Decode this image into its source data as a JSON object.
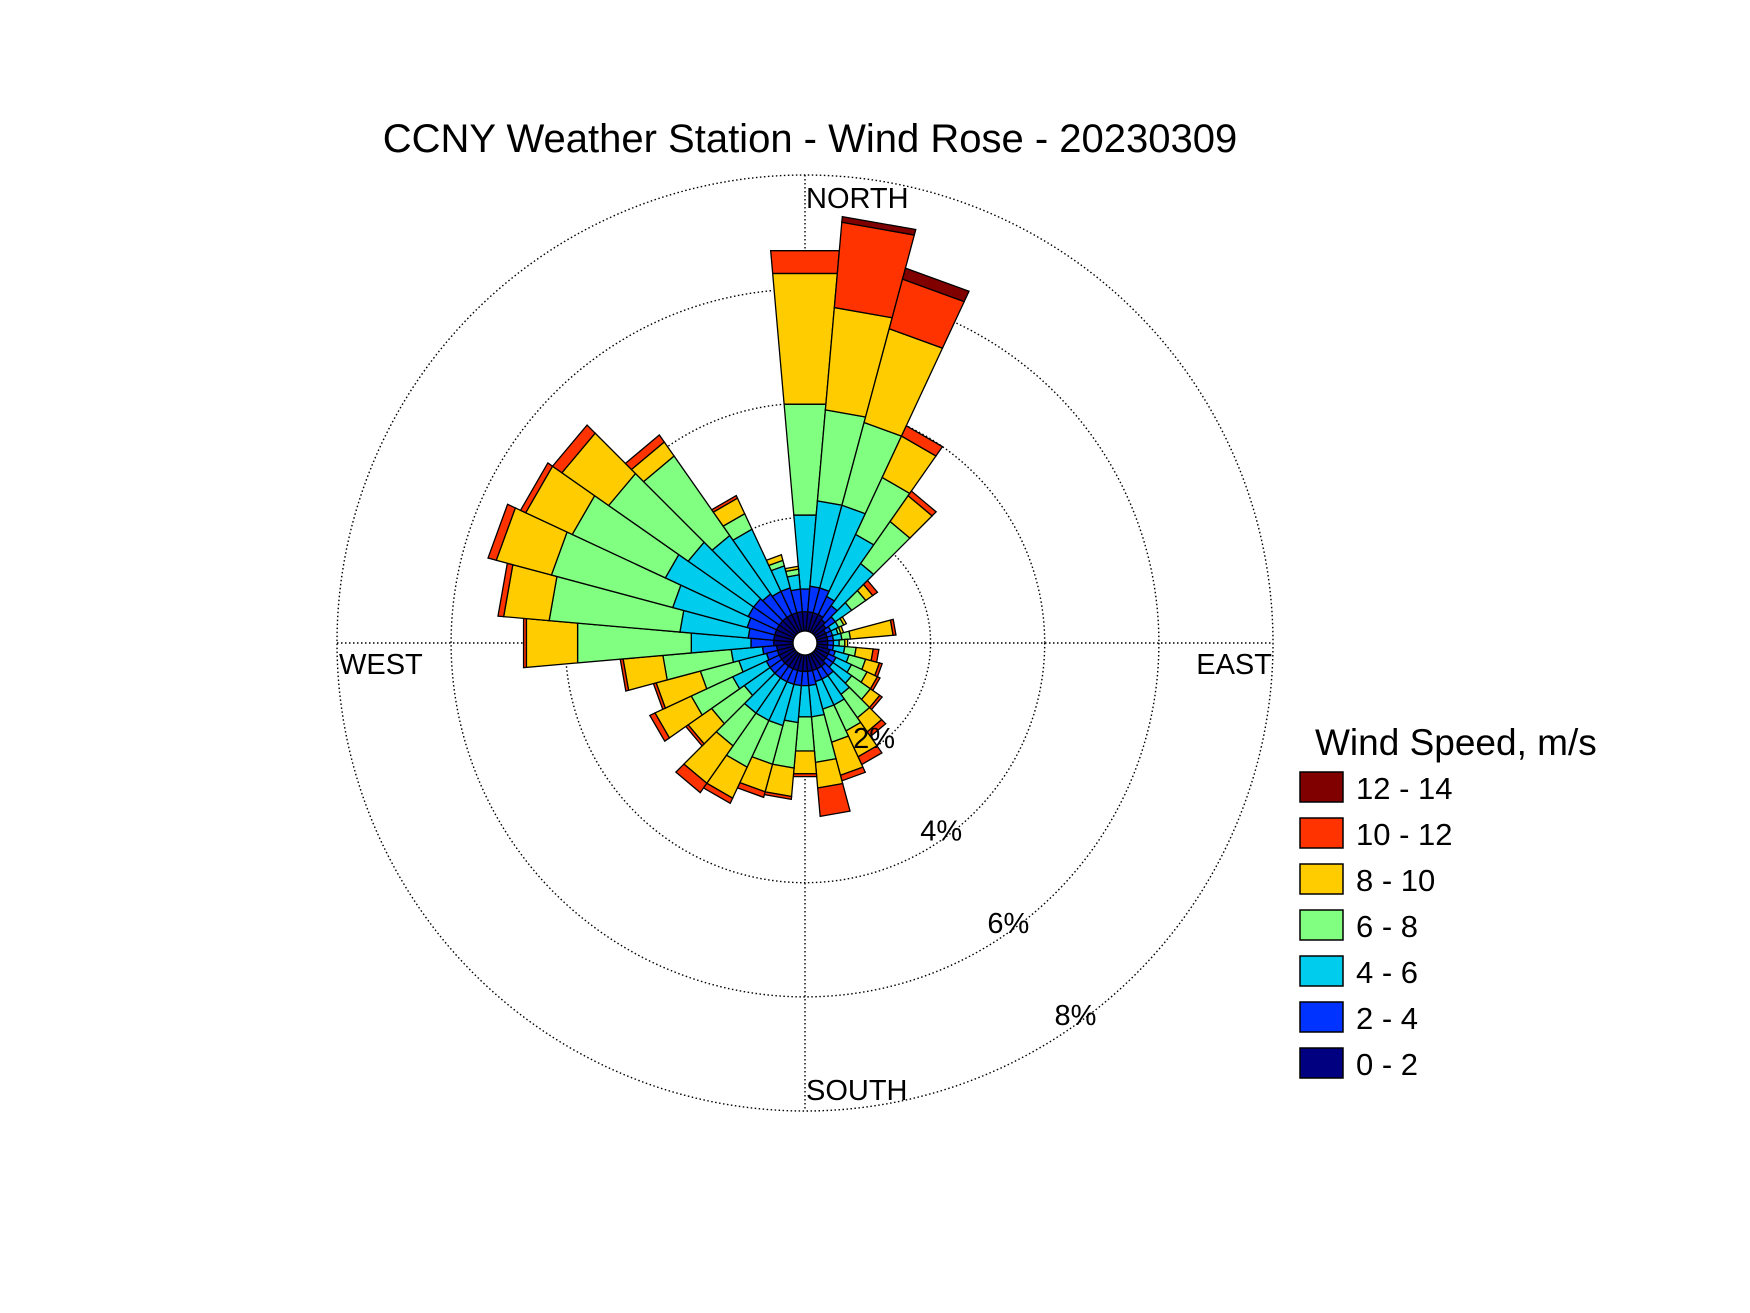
{
  "chart_data": {
    "type": "wind-rose",
    "title": "CCNY Weather Station - Wind Rose - 20230309",
    "direction_labels": {
      "north": "NORTH",
      "east": "EAST",
      "south": "SOUTH",
      "west": "WEST"
    },
    "radial_ticks": [
      {
        "value": 2,
        "label": "2%"
      },
      {
        "value": 4,
        "label": "4%"
      },
      {
        "value": 6,
        "label": "6%"
      },
      {
        "value": 8,
        "label": "8%"
      }
    ],
    "radial_max": 8,
    "center_offset": 0.2,
    "bin_width_deg": 10,
    "legend": {
      "title": "Wind Speed, m/s",
      "placement": "right",
      "bins": [
        {
          "label": "12 - 14",
          "color": "#800000"
        },
        {
          "label": "10 - 12",
          "color": "#ff3300"
        },
        {
          "label": "8 - 10",
          "color": "#ffcc00"
        },
        {
          "label": "6 - 8",
          "color": "#80ff80"
        },
        {
          "label": "4 - 6",
          "color": "#00ccee"
        },
        {
          "label": "2 - 4",
          "color": "#0033ff"
        },
        {
          "label": "0 - 2",
          "color": "#000080"
        }
      ]
    },
    "speed_bins_order": [
      "0 - 2",
      "2 - 4",
      "4 - 6",
      "6 - 8",
      "8 - 10",
      "10 - 12",
      "12 - 14"
    ],
    "directions": [
      {
        "dir": 0,
        "cum": [
          0.35,
          0.75,
          2.05,
          4.0,
          6.3,
          6.7,
          6.7
        ]
      },
      {
        "dir": 10,
        "cum": [
          0.35,
          0.8,
          2.3,
          3.9,
          5.7,
          7.2,
          7.3
        ]
      },
      {
        "dir": 20,
        "cum": [
          0.35,
          0.8,
          2.3,
          3.8,
          5.5,
          6.4,
          6.6
        ]
      },
      {
        "dir": 30,
        "cum": [
          0.35,
          0.7,
          1.9,
          3.0,
          3.8,
          4.0,
          4.0
        ]
      },
      {
        "dir": 40,
        "cum": [
          0.3,
          0.6,
          1.5,
          2.4,
          2.95,
          3.05,
          3.05
        ]
      },
      {
        "dir": 50,
        "cum": [
          0.25,
          0.45,
          0.8,
          1.1,
          1.25,
          1.35,
          1.35
        ]
      },
      {
        "dir": 60,
        "cum": [
          0.2,
          0.3,
          0.45,
          0.55,
          0.6,
          0.6,
          0.6
        ]
      },
      {
        "dir": 70,
        "cum": [
          0.2,
          0.3,
          0.4,
          0.45,
          0.5,
          0.5,
          0.5
        ]
      },
      {
        "dir": 80,
        "cum": [
          0.2,
          0.3,
          0.45,
          0.6,
          1.35,
          1.4,
          1.4
        ]
      },
      {
        "dir": 90,
        "cum": [
          0.2,
          0.3,
          0.4,
          0.5,
          0.55,
          0.55,
          0.55
        ]
      },
      {
        "dir": 100,
        "cum": [
          0.2,
          0.3,
          0.5,
          0.7,
          1.0,
          1.1,
          1.1
        ]
      },
      {
        "dir": 110,
        "cum": [
          0.25,
          0.35,
          0.6,
          0.9,
          1.15,
          1.2,
          1.2
        ]
      },
      {
        "dir": 120,
        "cum": [
          0.25,
          0.4,
          0.7,
          1.0,
          1.2,
          1.25,
          1.25
        ]
      },
      {
        "dir": 130,
        "cum": [
          0.25,
          0.4,
          0.8,
          1.2,
          1.4,
          1.45,
          1.45
        ]
      },
      {
        "dir": 140,
        "cum": [
          0.3,
          0.5,
          0.9,
          1.4,
          1.7,
          1.8,
          1.8
        ]
      },
      {
        "dir": 150,
        "cum": [
          0.3,
          0.5,
          1.0,
          1.5,
          2.0,
          2.15,
          2.15
        ]
      },
      {
        "dir": 160,
        "cum": [
          0.3,
          0.5,
          1.0,
          1.6,
          2.2,
          2.3,
          2.3
        ]
      },
      {
        "dir": 170,
        "cum": [
          0.3,
          0.55,
          1.1,
          1.9,
          2.35,
          2.85,
          2.85
        ]
      },
      {
        "dir": 180,
        "cum": [
          0.3,
          0.55,
          1.1,
          1.7,
          2.1,
          2.15,
          2.15
        ]
      },
      {
        "dir": 190,
        "cum": [
          0.3,
          0.55,
          1.2,
          2.0,
          2.5,
          2.55,
          2.55
        ]
      },
      {
        "dir": 200,
        "cum": [
          0.3,
          0.55,
          1.3,
          2.0,
          2.5,
          2.6,
          2.6
        ]
      },
      {
        "dir": 210,
        "cum": [
          0.3,
          0.55,
          1.3,
          2.2,
          2.8,
          2.9,
          2.9
        ]
      },
      {
        "dir": 220,
        "cum": [
          0.3,
          0.55,
          1.3,
          2.0,
          2.8,
          3.0,
          3.0
        ]
      },
      {
        "dir": 230,
        "cum": [
          0.3,
          0.55,
          1.1,
          1.8,
          2.3,
          2.35,
          2.35
        ]
      },
      {
        "dir": 240,
        "cum": [
          0.3,
          0.55,
          1.2,
          2.0,
          2.7,
          2.8,
          2.8
        ]
      },
      {
        "dir": 250,
        "cum": [
          0.3,
          0.5,
          1.0,
          1.7,
          2.5,
          2.55,
          2.55
        ]
      },
      {
        "dir": 260,
        "cum": [
          0.3,
          0.55,
          1.1,
          2.3,
          3.0,
          3.05,
          3.05
        ]
      },
      {
        "dir": 270,
        "cum": [
          0.35,
          0.75,
          1.8,
          3.8,
          4.7,
          4.75,
          4.75
        ]
      },
      {
        "dir": 280,
        "cum": [
          0.35,
          0.8,
          2.0,
          4.3,
          5.1,
          5.2,
          5.2
        ]
      },
      {
        "dir": 290,
        "cum": [
          0.35,
          0.85,
          2.2,
          4.4,
          5.4,
          5.55,
          5.55
        ]
      },
      {
        "dir": 300,
        "cum": [
          0.35,
          0.9,
          2.5,
          4.3,
          5.2,
          5.3,
          5.3
        ]
      },
      {
        "dir": 310,
        "cum": [
          0.35,
          0.9,
          2.3,
          4.0,
          5.0,
          5.2,
          5.2
        ]
      },
      {
        "dir": 320,
        "cum": [
          0.35,
          0.85,
          2.1,
          3.8,
          4.1,
          4.25,
          4.25
        ]
      },
      {
        "dir": 330,
        "cum": [
          0.35,
          0.8,
          2.0,
          2.3,
          2.6,
          2.65,
          2.65
        ]
      },
      {
        "dir": 340,
        "cum": [
          0.35,
          0.8,
          1.2,
          1.3,
          1.4,
          1.4,
          1.4
        ]
      },
      {
        "dir": 350,
        "cum": [
          0.35,
          0.75,
          1.0,
          1.1,
          1.15,
          1.15,
          1.15
        ]
      }
    ]
  }
}
